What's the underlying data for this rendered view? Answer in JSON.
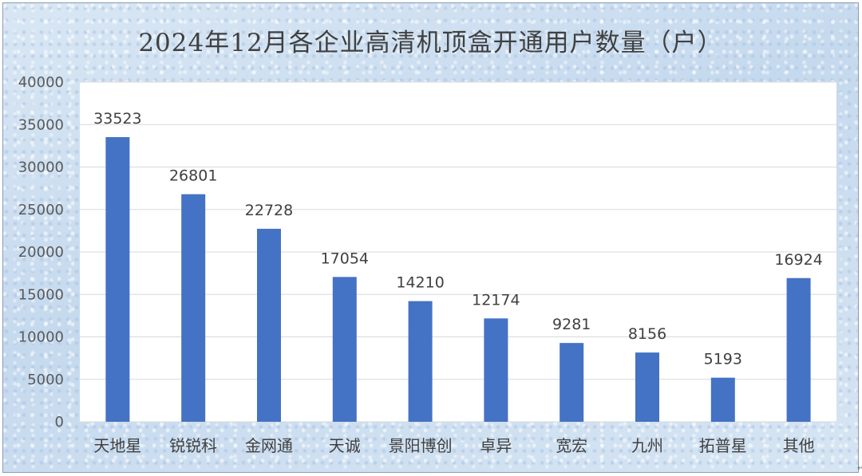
{
  "chart_data": {
    "type": "bar",
    "title": "2024年12月各企业高清机顶盒开通用户数量（户）",
    "xlabel": "",
    "ylabel": "",
    "categories": [
      "天地星",
      "锐锐科",
      "金网通",
      "天诚",
      "景阳博创",
      "卓异",
      "宽宏",
      "九州",
      "拓普星",
      "其他"
    ],
    "values": [
      33523,
      26801,
      22728,
      17054,
      14210,
      12174,
      9281,
      8156,
      5193,
      16924
    ],
    "ylim": [
      0,
      40000
    ],
    "yticks": [
      0,
      5000,
      10000,
      15000,
      20000,
      25000,
      30000,
      35000,
      40000
    ],
    "grid": true,
    "legend": "none",
    "colors": {
      "bar": "#4472c4",
      "grid": "#d9d9d9",
      "plot_bg": "#ffffff"
    }
  }
}
